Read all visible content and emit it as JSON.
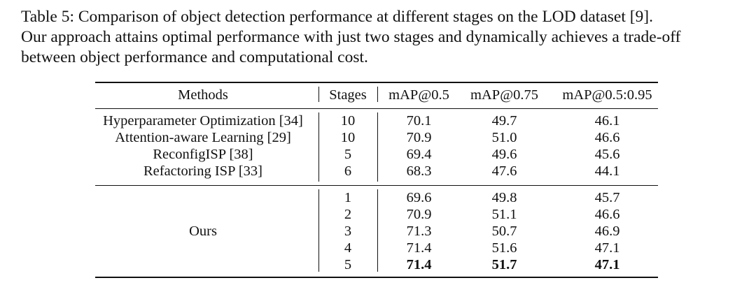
{
  "caption": {
    "lines": [
      "Table 5: Comparison of object detection performance at different stages on the LOD dataset [9].",
      "Our approach attains optimal performance with just two stages and dynamically achieves a trade-off",
      "between object performance and computational cost."
    ]
  },
  "table": {
    "headers": [
      "Methods",
      "Stages",
      "mAP@0.5",
      "mAP@0.75",
      "mAP@0.5:0.95"
    ],
    "baselines": [
      {
        "method": "Hyperparameter Optimization [34]",
        "stages": "10",
        "map50": "70.1",
        "map75": "49.7",
        "map5095": "46.1"
      },
      {
        "method": "Attention-aware Learning [29]",
        "stages": "10",
        "map50": "70.9",
        "map75": "51.0",
        "map5095": "46.6"
      },
      {
        "method": "ReconfigISP [38]",
        "stages": "5",
        "map50": "69.4",
        "map75": "49.6",
        "map5095": "45.6"
      },
      {
        "method": "Refactoring ISP [33]",
        "stages": "6",
        "map50": "68.3",
        "map75": "47.6",
        "map5095": "44.1"
      }
    ],
    "ours": {
      "method": "Ours",
      "rows": [
        {
          "stages": "1",
          "map50": "69.6",
          "map75": "49.8",
          "map5095": "45.7"
        },
        {
          "stages": "2",
          "map50": "70.9",
          "map75": "51.1",
          "map5095": "46.6"
        },
        {
          "stages": "3",
          "map50": "71.3",
          "map75": "50.7",
          "map5095": "46.9"
        },
        {
          "stages": "4",
          "map50": "71.4",
          "map75": "51.6",
          "map5095": "47.1"
        },
        {
          "stages": "5",
          "map50": "71.4",
          "map75": "51.7",
          "map5095": "47.1"
        }
      ]
    }
  }
}
